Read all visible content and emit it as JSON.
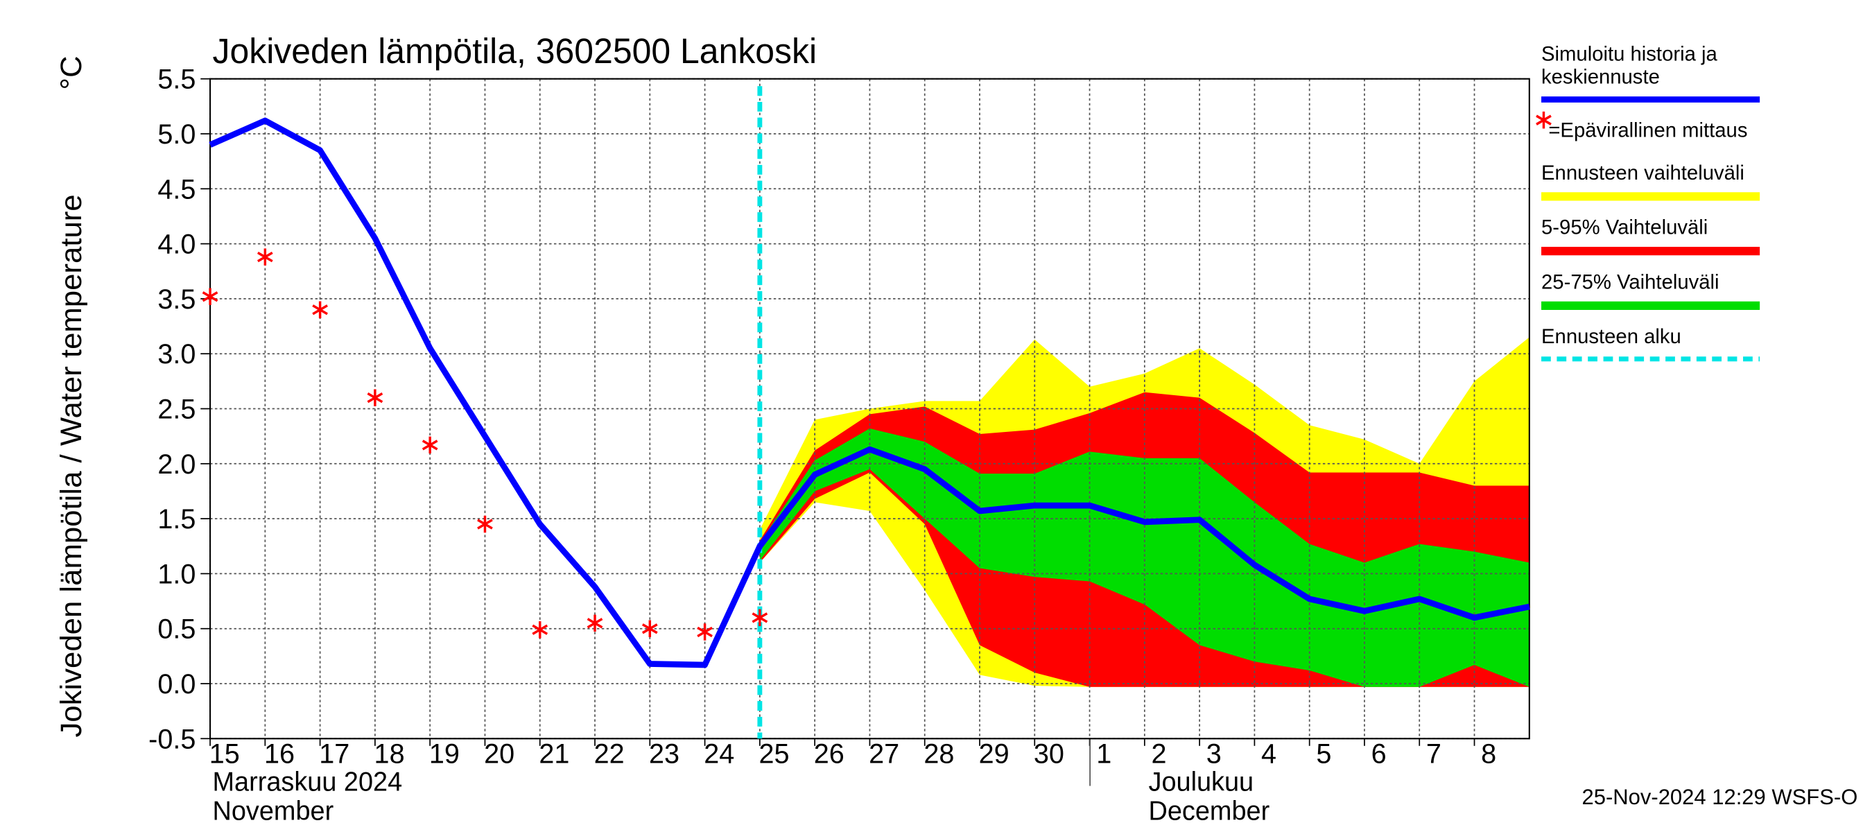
{
  "chart_data": {
    "type": "line",
    "title": "Jokiveden lämpötila, 3602500 Lankoski",
    "y_label": "Jokiveden lämpötila / Water temperature",
    "y_unit": "°C",
    "month_labels": [
      "Marraskuu 2024",
      "November",
      "Joulukuu",
      "December"
    ],
    "footer": "25-Nov-2024 12:29 WSFS-O",
    "forecast_start": "2024-11-25",
    "forecast_start_name": "Ennusteen alku",
    "forecast_start_color": "#00e5e5",
    "xlim": [
      "2024-11-15",
      "2024-12-09"
    ],
    "xticks": [
      {
        "value": "2024-11-15",
        "label": "15"
      },
      {
        "value": "2024-11-16",
        "label": "16"
      },
      {
        "value": "2024-11-17",
        "label": "17"
      },
      {
        "value": "2024-11-18",
        "label": "18"
      },
      {
        "value": "2024-11-19",
        "label": "19"
      },
      {
        "value": "2024-11-20",
        "label": "20"
      },
      {
        "value": "2024-11-21",
        "label": "21"
      },
      {
        "value": "2024-11-22",
        "label": "22"
      },
      {
        "value": "2024-11-23",
        "label": "23"
      },
      {
        "value": "2024-11-24",
        "label": "24"
      },
      {
        "value": "2024-11-25",
        "label": "25"
      },
      {
        "value": "2024-11-26",
        "label": "26"
      },
      {
        "value": "2024-11-27",
        "label": "27"
      },
      {
        "value": "2024-11-28",
        "label": "28"
      },
      {
        "value": "2024-11-29",
        "label": "29"
      },
      {
        "value": "2024-11-30",
        "label": "30"
      },
      {
        "value": "2024-12-01",
        "label": "1"
      },
      {
        "value": "2024-12-02",
        "label": "2"
      },
      {
        "value": "2024-12-03",
        "label": "3"
      },
      {
        "value": "2024-12-04",
        "label": "4"
      },
      {
        "value": "2024-12-05",
        "label": "5"
      },
      {
        "value": "2024-12-06",
        "label": "6"
      },
      {
        "value": "2024-12-07",
        "label": "7"
      },
      {
        "value": "2024-12-08",
        "label": "8"
      }
    ],
    "ylim": [
      -0.5,
      5.5
    ],
    "yticks": [
      -0.5,
      {
        "value": 0,
        "label": "0.0"
      },
      0.5,
      {
        "value": 1,
        "label": "1.0"
      },
      1.5,
      {
        "value": 2,
        "label": "2.0"
      },
      2.5,
      {
        "value": 3,
        "label": "3.0"
      },
      3.5,
      {
        "value": 4,
        "label": "4.0"
      },
      4.5,
      {
        "value": 5,
        "label": "5.0"
      },
      5.5
    ],
    "grid": true,
    "bands": [
      {
        "name": "Ennusteen vaihteluväli",
        "color": "#ffff00",
        "x": [
          "2024-11-25",
          "2024-11-26",
          "2024-11-27",
          "2024-11-28",
          "2024-11-29",
          "2024-11-30",
          "2024-12-01",
          "2024-12-02",
          "2024-12-03",
          "2024-12-04",
          "2024-12-05",
          "2024-12-06",
          "2024-12-07",
          "2024-12-08",
          "2024-12-09"
        ],
        "high": [
          1.4,
          2.4,
          2.5,
          2.57,
          2.57,
          3.13,
          2.7,
          2.82,
          3.05,
          2.72,
          2.35,
          2.22,
          2.0,
          2.75,
          3.15
        ],
        "low": [
          1.1,
          1.65,
          1.57,
          0.85,
          0.08,
          -0.02,
          -0.03,
          -0.03,
          -0.03,
          -0.03,
          -0.03,
          -0.03,
          -0.03,
          -0.03,
          -0.03
        ]
      },
      {
        "name": "5-95% Vaihteluväli",
        "color": "#ff0000",
        "x": [
          "2024-11-25",
          "2024-11-26",
          "2024-11-27",
          "2024-11-28",
          "2024-11-29",
          "2024-11-30",
          "2024-12-01",
          "2024-12-02",
          "2024-12-03",
          "2024-12-04",
          "2024-12-05",
          "2024-12-06",
          "2024-12-07",
          "2024-12-08",
          "2024-12-09"
        ],
        "high": [
          1.3,
          2.12,
          2.45,
          2.52,
          2.27,
          2.31,
          2.46,
          2.65,
          2.6,
          2.28,
          1.92,
          1.92,
          1.92,
          1.8,
          1.8
        ],
        "low": [
          1.1,
          1.68,
          1.92,
          1.45,
          0.35,
          0.1,
          -0.03,
          -0.03,
          -0.03,
          -0.03,
          -0.03,
          -0.03,
          -0.03,
          -0.03,
          -0.03
        ]
      },
      {
        "name": "25-75% Vaihteluväli",
        "color": "#00dd00",
        "x": [
          "2024-11-25",
          "2024-11-26",
          "2024-11-27",
          "2024-11-28",
          "2024-11-29",
          "2024-11-30",
          "2024-12-01",
          "2024-12-02",
          "2024-12-03",
          "2024-12-04",
          "2024-12-05",
          "2024-12-06",
          "2024-12-07",
          "2024-12-08",
          "2024-12-09"
        ],
        "high": [
          1.28,
          2.03,
          2.32,
          2.2,
          1.91,
          1.91,
          2.11,
          2.05,
          2.05,
          1.65,
          1.27,
          1.1,
          1.27,
          1.2,
          1.1
        ],
        "low": [
          1.12,
          1.75,
          1.95,
          1.5,
          1.05,
          0.97,
          0.93,
          0.72,
          0.35,
          0.2,
          0.12,
          -0.03,
          -0.03,
          0.17,
          -0.03
        ]
      }
    ],
    "series": [
      {
        "name": [
          "Simuloitu historia ja",
          "keskiennuste"
        ],
        "color": "#0000ff",
        "style": "line",
        "x": [
          "2024-11-15",
          "2024-11-16",
          "2024-11-17",
          "2024-11-18",
          "2024-11-19",
          "2024-11-20",
          "2024-11-21",
          "2024-11-22",
          "2024-11-23",
          "2024-11-24",
          "2024-11-25",
          "2024-11-26",
          "2024-11-27",
          "2024-11-28",
          "2024-11-29",
          "2024-11-30",
          "2024-12-01",
          "2024-12-02",
          "2024-12-03",
          "2024-12-04",
          "2024-12-05",
          "2024-12-06",
          "2024-12-07",
          "2024-12-08",
          "2024-12-09"
        ],
        "values": [
          4.9,
          5.12,
          4.85,
          4.05,
          3.05,
          2.25,
          1.45,
          0.88,
          0.18,
          0.17,
          1.25,
          1.9,
          2.13,
          1.95,
          1.57,
          1.62,
          1.62,
          1.47,
          1.49,
          1.08,
          0.77,
          0.66,
          0.77,
          0.6,
          0.7
        ]
      },
      {
        "name": [
          "=Epävirallinen mittaus"
        ],
        "color": "#ff0000",
        "style": "star",
        "x": [
          "2024-11-15",
          "2024-11-16",
          "2024-11-17",
          "2024-11-18",
          "2024-11-19",
          "2024-11-20",
          "2024-11-21",
          "2024-11-22",
          "2024-11-23",
          "2024-11-24",
          "2024-11-25"
        ],
        "values": [
          3.52,
          3.88,
          3.4,
          2.6,
          2.17,
          1.45,
          0.49,
          0.55,
          0.5,
          0.47,
          0.6
        ]
      }
    ]
  }
}
